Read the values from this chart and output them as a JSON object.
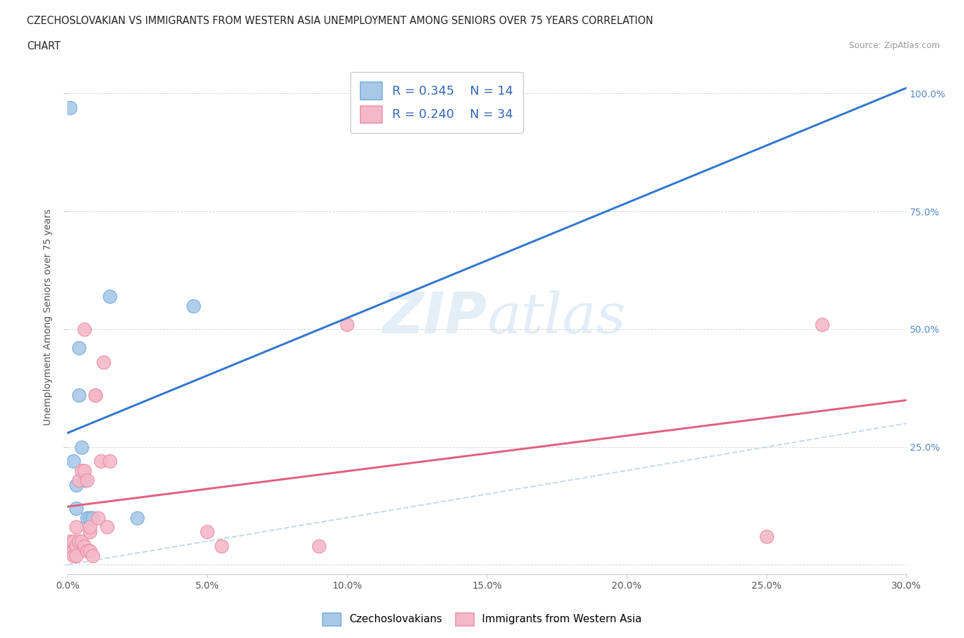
{
  "title_line1": "CZECHOSLOVAKIAN VS IMMIGRANTS FROM WESTERN ASIA UNEMPLOYMENT AMONG SENIORS OVER 75 YEARS CORRELATION",
  "title_line2": "CHART",
  "source": "Source: ZipAtlas.com",
  "ylabel": "Unemployment Among Seniors over 75 years",
  "xlim": [
    0.0,
    0.3
  ],
  "ylim": [
    -0.02,
    1.07
  ],
  "xtick_labels": [
    "0.0%",
    "5.0%",
    "10.0%",
    "15.0%",
    "20.0%",
    "25.0%",
    "30.0%"
  ],
  "xtick_vals": [
    0.0,
    0.05,
    0.1,
    0.15,
    0.2,
    0.25,
    0.3
  ],
  "ytick_vals": [
    0.0,
    0.25,
    0.5,
    0.75,
    1.0
  ],
  "ytick_labels_right": [
    "",
    "25.0%",
    "50.0%",
    "75.0%",
    "100.0%"
  ],
  "czech_color": "#a8c8e8",
  "western_asia_color": "#f5b8c8",
  "czech_edge_color": "#6aaad8",
  "western_asia_edge_color": "#e888a0",
  "czech_line_color": "#3377cc",
  "western_asia_line_color": "#e06080",
  "diagonal_color": "#c8d8e8",
  "watermark_color": "#d8e8f5",
  "R_czech": 0.345,
  "N_czech": 14,
  "R_western": 0.24,
  "N_western": 34,
  "czech_x": [
    0.001,
    0.002,
    0.003,
    0.003,
    0.004,
    0.004,
    0.005,
    0.006,
    0.007,
    0.008,
    0.009,
    0.015,
    0.025,
    0.045
  ],
  "czech_y": [
    0.97,
    0.22,
    0.17,
    0.12,
    0.46,
    0.36,
    0.25,
    0.18,
    0.1,
    0.1,
    0.1,
    0.57,
    0.1,
    0.55
  ],
  "western_x": [
    0.001,
    0.001,
    0.002,
    0.002,
    0.002,
    0.003,
    0.003,
    0.003,
    0.004,
    0.004,
    0.005,
    0.005,
    0.006,
    0.006,
    0.006,
    0.007,
    0.007,
    0.008,
    0.008,
    0.008,
    0.009,
    0.01,
    0.01,
    0.011,
    0.012,
    0.013,
    0.014,
    0.015,
    0.05,
    0.055,
    0.09,
    0.1,
    0.25,
    0.27
  ],
  "western_y": [
    0.03,
    0.05,
    0.05,
    0.03,
    0.02,
    0.04,
    0.08,
    0.02,
    0.18,
    0.05,
    0.05,
    0.2,
    0.5,
    0.2,
    0.04,
    0.03,
    0.18,
    0.07,
    0.08,
    0.03,
    0.02,
    0.36,
    0.36,
    0.1,
    0.22,
    0.43,
    0.08,
    0.22,
    0.07,
    0.04,
    0.04,
    0.51,
    0.06,
    0.51
  ]
}
